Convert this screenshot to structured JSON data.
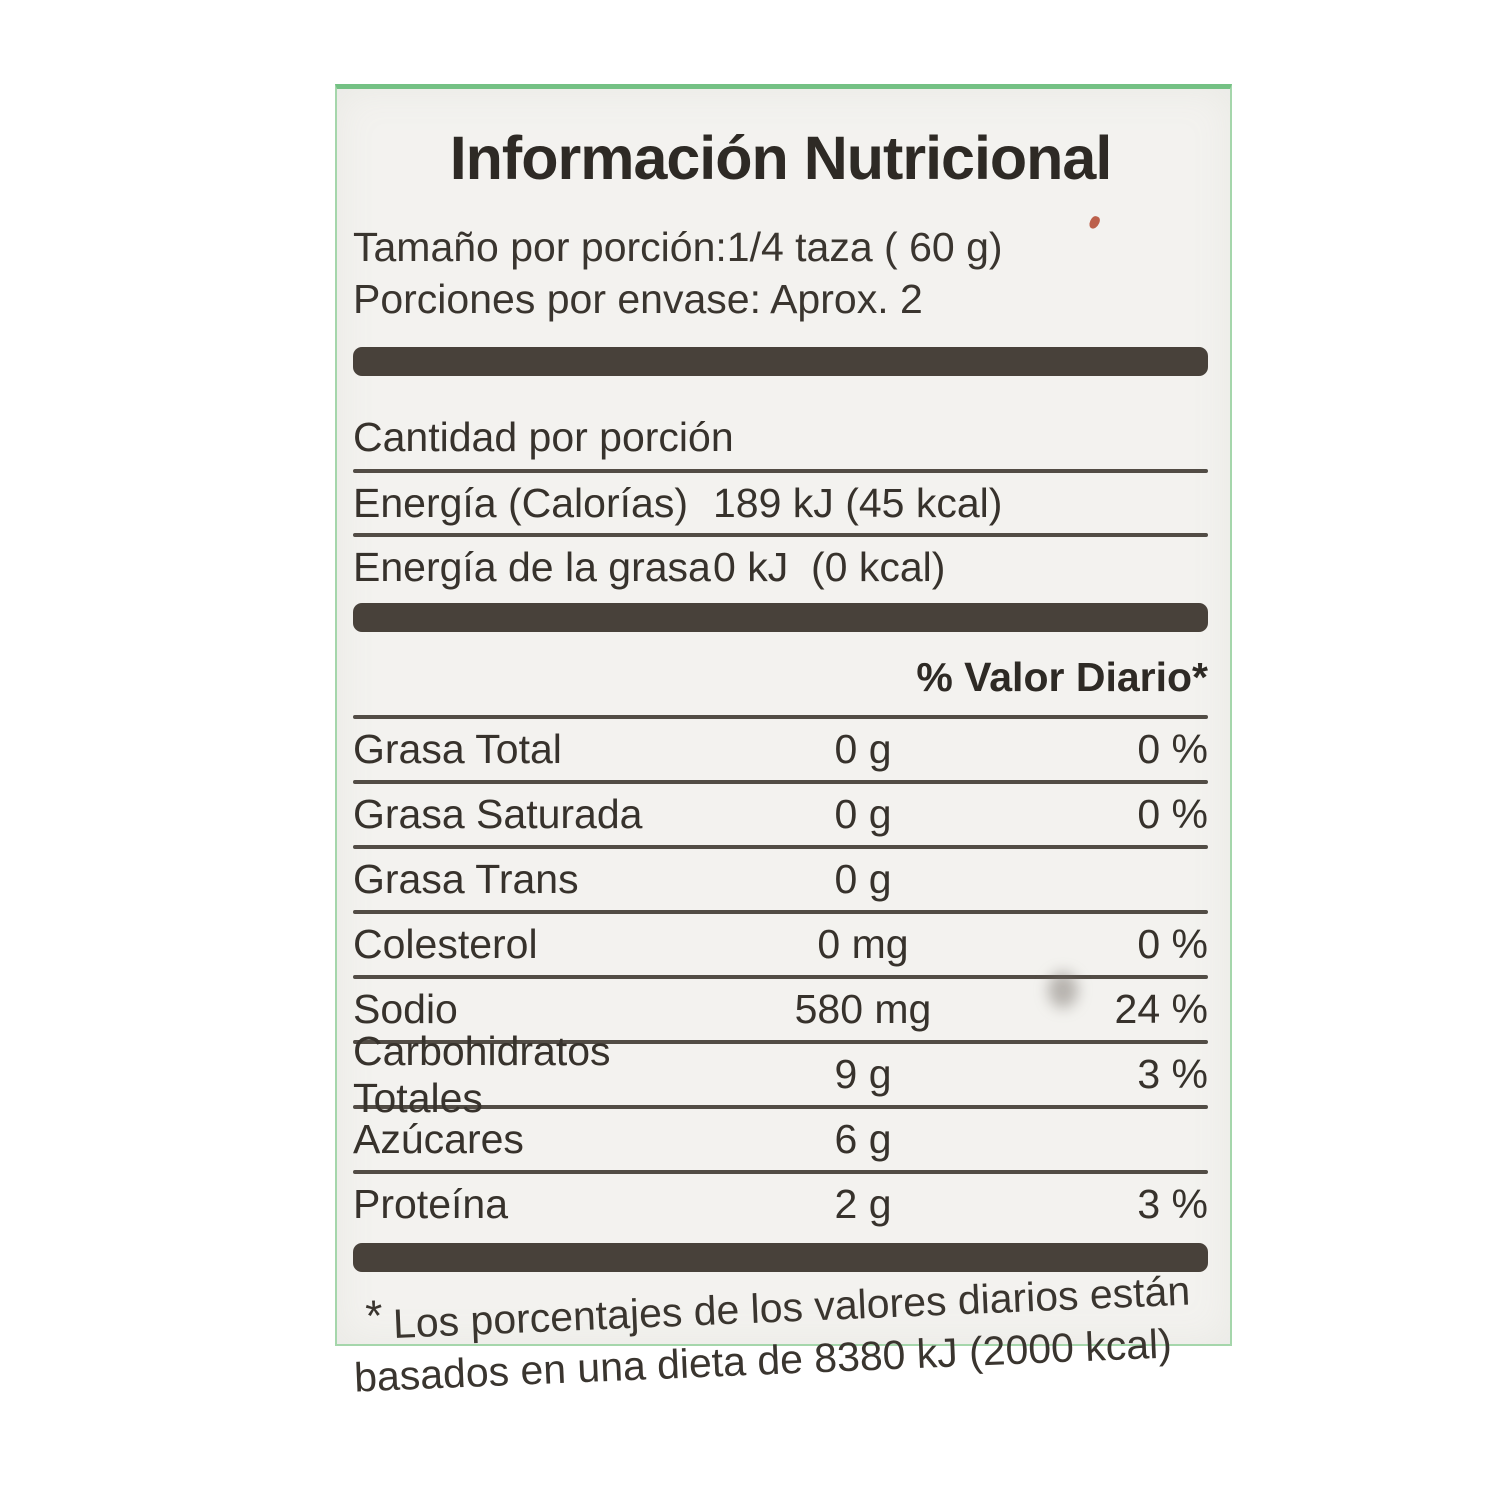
{
  "label": {
    "title": "Información Nutricional",
    "serving_size": "Tamaño por porción:1/4 taza ( 60 g)",
    "servings_per_container": "Porciones por envase: Aprox. 2",
    "amount_per_serving": "Cantidad por porción",
    "energy_rows": [
      {
        "name": "Energía (Calorías)",
        "value": "189 kJ (45 kcal)"
      },
      {
        "name": "Energía de la grasa",
        "value": "0 kJ  (0 kcal)"
      }
    ],
    "daily_value_header": "% Valor Diario*",
    "nutrient_rows": [
      {
        "name": "Grasa Total",
        "amount": "0 g",
        "dv": "0 %"
      },
      {
        "name": "Grasa Saturada",
        "amount": "0 g",
        "dv": "0 %"
      },
      {
        "name": "Grasa Trans",
        "amount": "0 g",
        "dv": ""
      },
      {
        "name": "Colesterol",
        "amount": "0 mg",
        "dv": "0 %"
      },
      {
        "name": "Sodio",
        "amount": "580 mg",
        "dv": "24 %"
      },
      {
        "name": "Carbohidratos Totales",
        "amount": "9 g",
        "dv": "3 %"
      },
      {
        "name": "Azúcares",
        "amount": "6 g",
        "dv": ""
      },
      {
        "name": "Proteína",
        "amount": "2 g",
        "dv": "3 %"
      }
    ],
    "footnote_marker": "*",
    "footnote_line1": "Los porcentajes de los valores diarios están",
    "footnote_line2": "basados en una dieta de 8380 kJ (2000 kcal)",
    "colors": {
      "label_background": "#f3f2ef",
      "text": "#37322c",
      "divider_bar": "#48413a",
      "hairline": "#524c45",
      "edge_green": "#74c184"
    }
  }
}
